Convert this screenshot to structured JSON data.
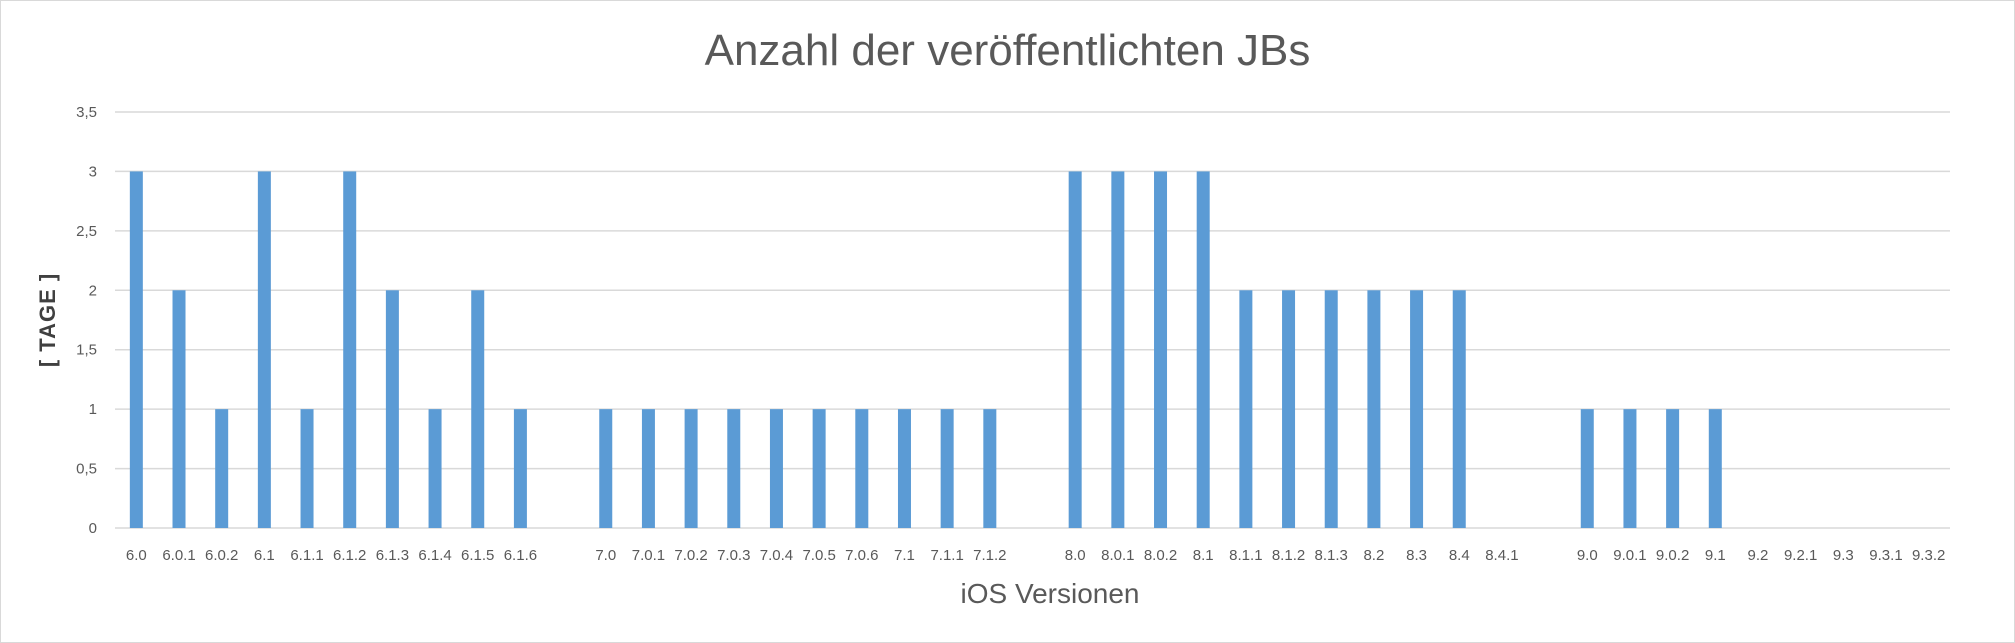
{
  "chart_data": {
    "type": "bar",
    "title": "Anzahl der veröffentlichten JBs",
    "xlabel": "iOS Versionen",
    "ylabel": "[ TAGE ]",
    "ylim": [
      0,
      3.5
    ],
    "yticks": [
      "0",
      "0,5",
      "1",
      "1,5",
      "2",
      "2,5",
      "3",
      "3,5"
    ],
    "yticks_values": [
      0,
      0.5,
      1,
      1.5,
      2,
      2.5,
      3,
      3.5
    ],
    "grid": true,
    "bar_color": "#5b9bd5",
    "categories": [
      "6.0",
      "6.0.1",
      "6.0.2",
      "6.1",
      "6.1.1",
      "6.1.2",
      "6.1.3",
      "6.1.4",
      "6.1.5",
      "6.1.6",
      "",
      "7.0",
      "7.0.1",
      "7.0.2",
      "7.0.3",
      "7.0.4",
      "7.0.5",
      "7.0.6",
      "7.1",
      "7.1.1",
      "7.1.2",
      "",
      "8.0",
      "8.0.1",
      "8.0.2",
      "8.1",
      "8.1.1",
      "8.1.2",
      "8.1.3",
      "8.2",
      "8.3",
      "8.4",
      "8.4.1",
      "",
      "9.0",
      "9.0.1",
      "9.0.2",
      "9.1",
      "9.2",
      "9.2.1",
      "9.3",
      "9.3.1",
      "9.3.2"
    ],
    "values": [
      3,
      2,
      1,
      3,
      1,
      3,
      2,
      1,
      2,
      1,
      0,
      1,
      1,
      1,
      1,
      1,
      1,
      1,
      1,
      1,
      1,
      0,
      3,
      3,
      3,
      3,
      2,
      2,
      2,
      2,
      2,
      2,
      0,
      0,
      1,
      1,
      1,
      1,
      0,
      0,
      0,
      0,
      0
    ]
  }
}
